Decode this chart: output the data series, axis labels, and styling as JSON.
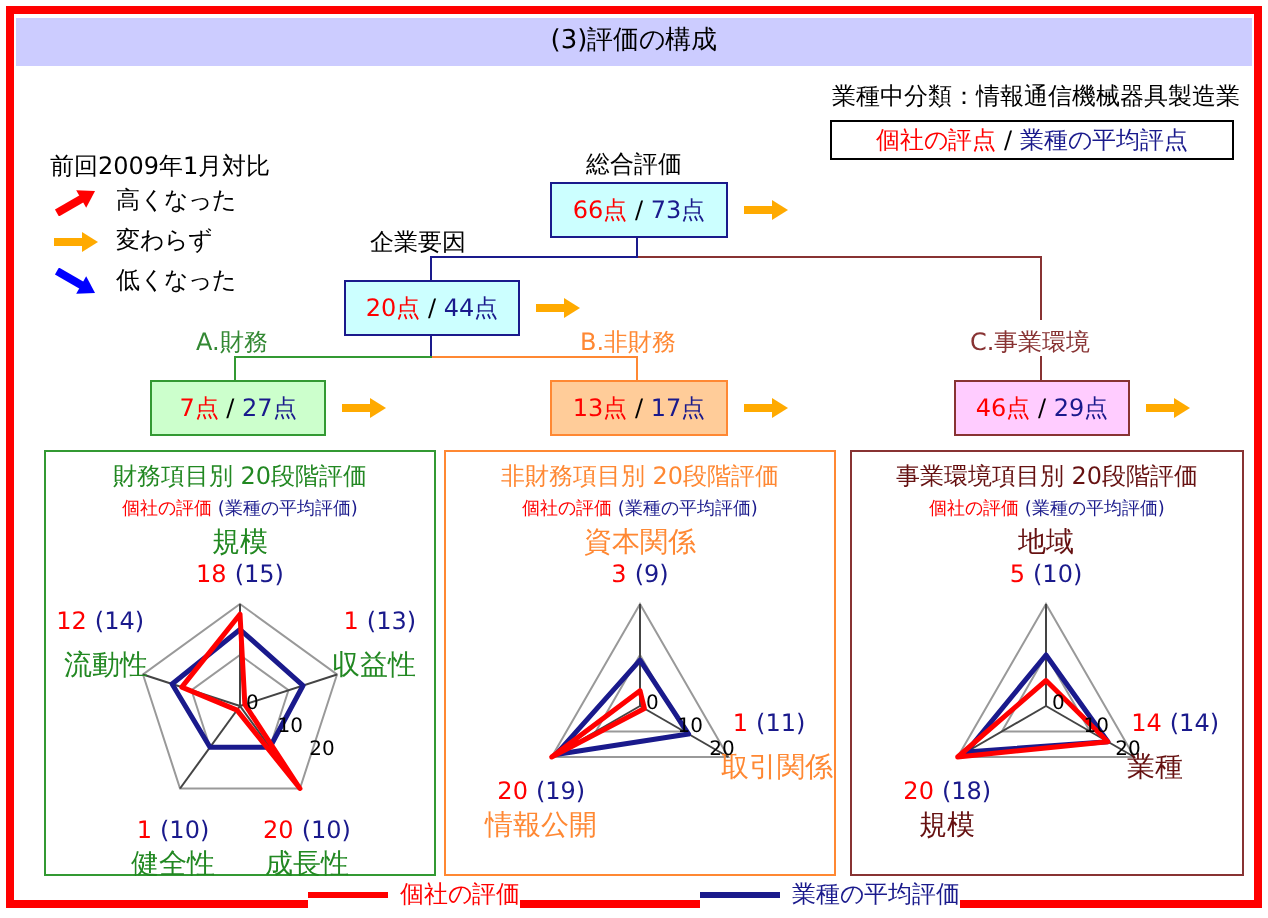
{
  "chart_data": [
    {
      "type": "other",
      "title": "(3)評価の構成",
      "subtitle": "業種中分類：情報通信機械器具製造業",
      "annotations": [
        "個社の評点 / 業種の平均評点",
        "前回2009年1月対比",
        "高くなった",
        "変わらず",
        "低くなった",
        "総合評価",
        "66点 / 73点",
        "企業要因",
        "20点 / 44点",
        "A.財務",
        "7点 / 27点",
        "B.非財務",
        "13点 / 17点",
        "C.事業環境",
        "46点 / 29点"
      ]
    },
    {
      "type": "radar",
      "title": "財務項目別 20段階評価",
      "subtitle": "個社の評価 (業種の平均評価)",
      "categories": [
        "規模",
        "収益性",
        "成長性",
        "健全性",
        "流動性"
      ],
      "series": [
        {
          "name": "個社の評価",
          "color": "#ff0000",
          "values": [
            18,
            1,
            20,
            1,
            12
          ]
        },
        {
          "name": "業種の平均評価",
          "color": "#1a1a8c",
          "values": [
            15,
            13,
            10,
            10,
            14
          ]
        }
      ],
      "annotations": [
        "18 (15)",
        "1 (13)",
        "20 (10)",
        "1 (10)",
        "12 (14)"
      ],
      "ylim": [
        0,
        20
      ],
      "yticks": [
        0,
        10,
        20
      ],
      "grid": true,
      "legend": "bottom",
      "marker": "none"
    },
    {
      "type": "radar",
      "title": "非財務項目別 20段階評価",
      "subtitle": "個社の評価 (業種の平均評価)",
      "categories": [
        "資本関係",
        "取引関係",
        "情報公開"
      ],
      "series": [
        {
          "color": "#ff0000",
          "values": [
            3,
            1,
            20
          ]
        },
        {
          "color": "#1a1a8c",
          "values": [
            9,
            11,
            19
          ]
        }
      ],
      "annotations": [
        "3 (9)",
        "1 (11)",
        "20 (19)"
      ],
      "ylim": [
        0,
        20
      ],
      "yticks": [
        0,
        10,
        20
      ],
      "grid": true,
      "marker": "none"
    },
    {
      "type": "radar",
      "title": "事業環境項目別 20段階評価",
      "subtitle": "個社の評価 (業種の平均評価)",
      "categories": [
        "地域",
        "業種",
        "規模"
      ],
      "series": [
        {
          "color": "#ff0000",
          "values": [
            5,
            14,
            20
          ]
        },
        {
          "color": "#1a1a8c",
          "values": [
            10,
            14,
            18
          ]
        }
      ],
      "annotations": [
        "5 (10)",
        "14 (14)",
        "20 (18)"
      ],
      "ylim": [
        0,
        20
      ],
      "yticks": [
        0,
        10,
        20
      ],
      "grid": true,
      "marker": "none"
    }
  ]
}
